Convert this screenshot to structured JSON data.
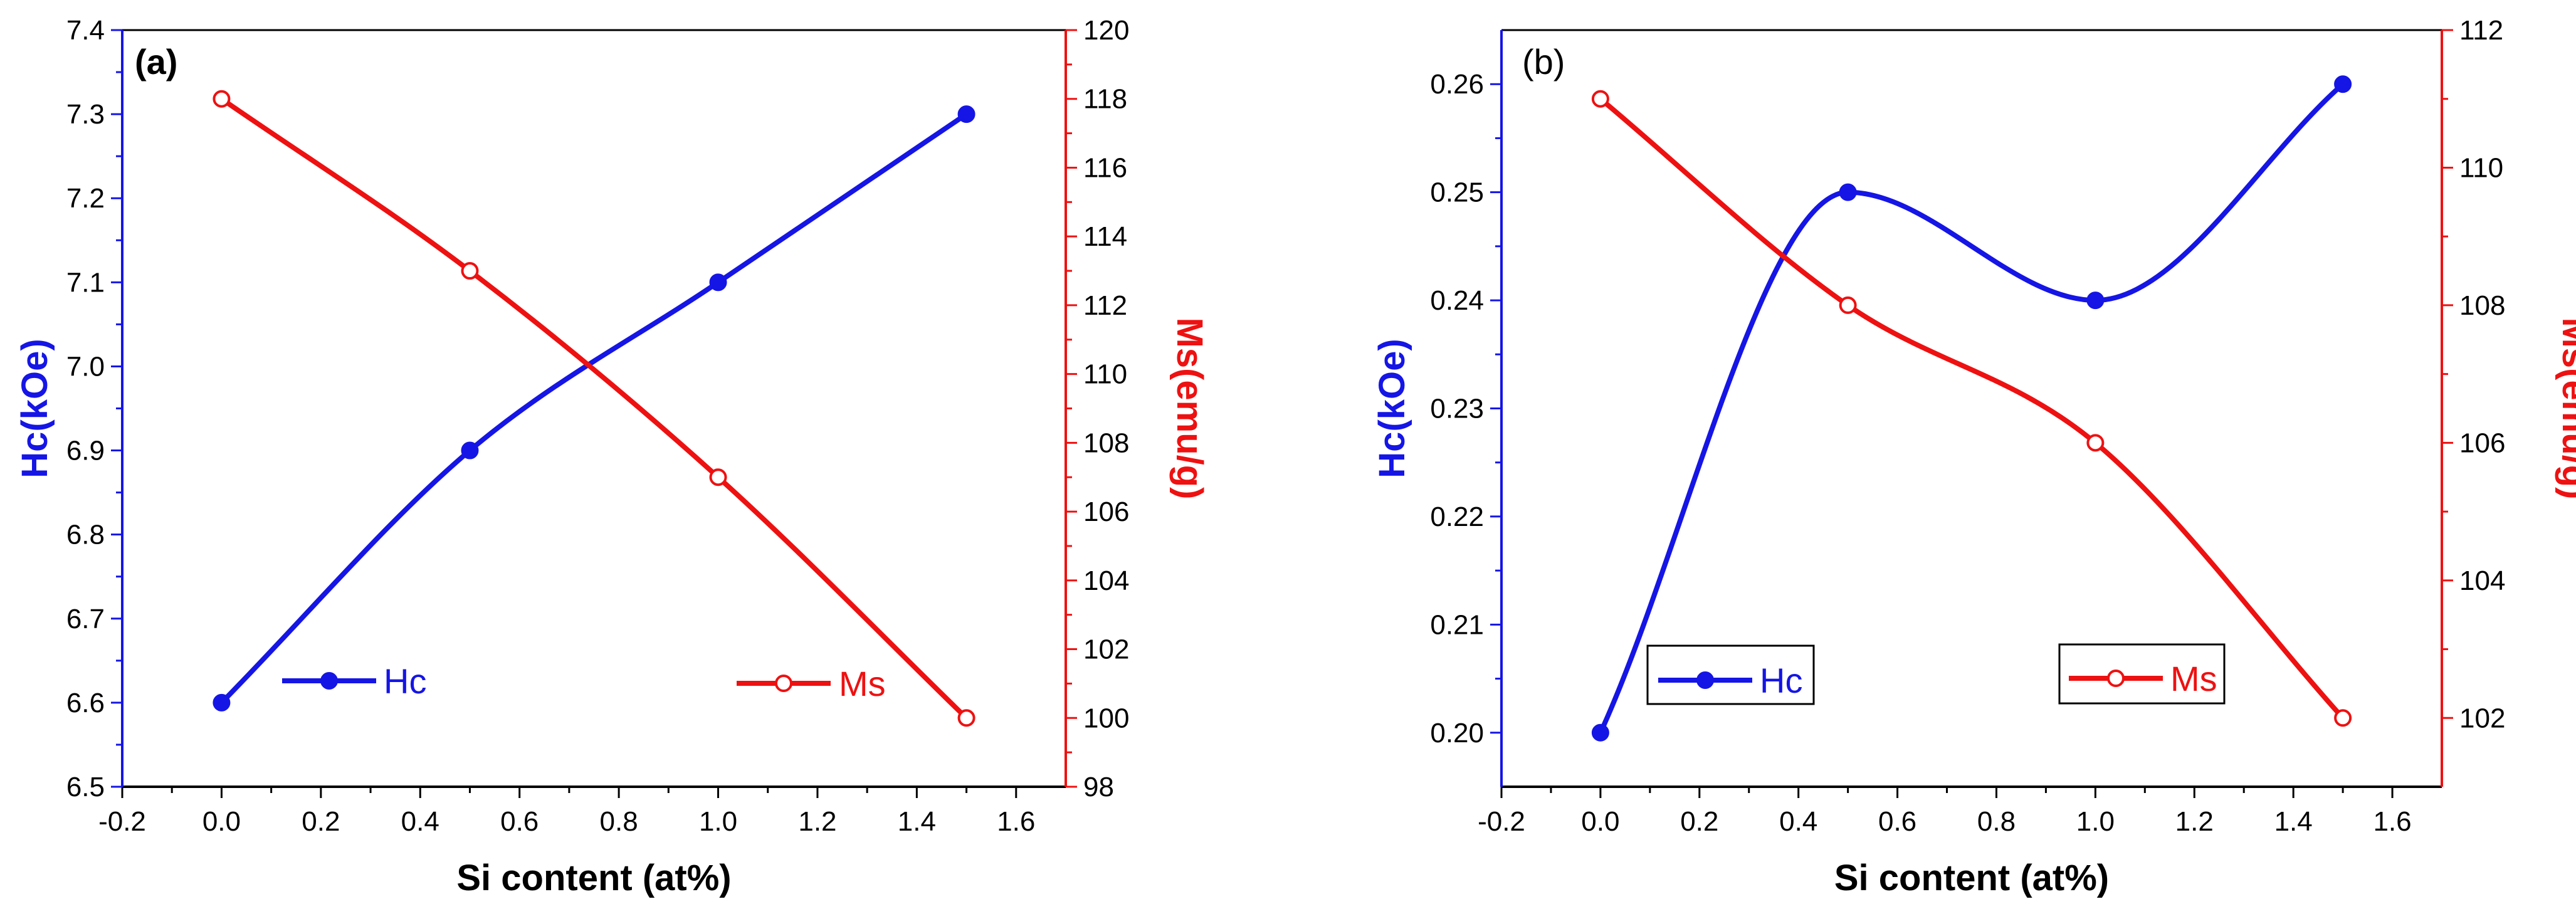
{
  "colors": {
    "hc": "#1515e6",
    "ms": "#ee1111",
    "axis": "#000000"
  },
  "chart_data": [
    {
      "type": "line",
      "panel_label": "(a)",
      "xlabel": "Si content (at%)",
      "ylabel_left": "Hc(kOe)",
      "ylabel_right": "Ms(emu/g)",
      "xlim": [
        -0.2,
        1.7
      ],
      "ylim_left": [
        6.5,
        7.4
      ],
      "ylim_right": [
        98,
        120
      ],
      "x_ticks": [
        "-0.2",
        "0.0",
        "0.2",
        "0.4",
        "0.6",
        "0.8",
        "1.0",
        "1.2",
        "1.4",
        "1.6"
      ],
      "y_left_ticks": [
        "6.5",
        "6.6",
        "6.7",
        "6.8",
        "6.9",
        "7.0",
        "7.1",
        "7.2",
        "7.3",
        "7.4"
      ],
      "y_right_ticks": [
        "98",
        "100",
        "102",
        "104",
        "106",
        "108",
        "110",
        "112",
        "114",
        "116",
        "118",
        "120"
      ],
      "legend_boxed": false,
      "series": [
        {
          "name": "Hc",
          "axis": "left",
          "marker": "filled",
          "x": [
            0,
            0.5,
            1.0,
            1.5
          ],
          "values": [
            6.6,
            6.9,
            7.1,
            7.3
          ]
        },
        {
          "name": "Ms",
          "axis": "right",
          "marker": "open",
          "x": [
            0,
            0.5,
            1.0,
            1.5
          ],
          "values": [
            118,
            113,
            107,
            100
          ]
        }
      ]
    },
    {
      "type": "line",
      "panel_label": "(b)",
      "xlabel": "Si content (at%)",
      "ylabel_left": "Hc(kOe)",
      "ylabel_right": "Ms(emu/g)",
      "xlim": [
        -0.2,
        1.7
      ],
      "ylim_left": [
        0.195,
        0.265
      ],
      "ylim_right": [
        101.0,
        112.0
      ],
      "x_ticks": [
        "-0.2",
        "0.0",
        "0.2",
        "0.4",
        "0.6",
        "0.8",
        "1.0",
        "1.2",
        "1.4",
        "1.6"
      ],
      "y_left_ticks": [
        "0.20",
        "0.21",
        "0.22",
        "0.23",
        "0.24",
        "0.25",
        "0.26"
      ],
      "y_right_ticks": [
        "102",
        "104",
        "106",
        "108",
        "110",
        "112"
      ],
      "legend_boxed": true,
      "series": [
        {
          "name": "Hc",
          "axis": "left",
          "marker": "filled",
          "x": [
            0,
            0.5,
            1.0,
            1.5
          ],
          "values": [
            0.2,
            0.25,
            0.24,
            0.26
          ]
        },
        {
          "name": "Ms",
          "axis": "right",
          "marker": "open",
          "x": [
            0,
            0.5,
            1.0,
            1.5
          ],
          "values": [
            111,
            108,
            106,
            102
          ]
        }
      ]
    }
  ]
}
